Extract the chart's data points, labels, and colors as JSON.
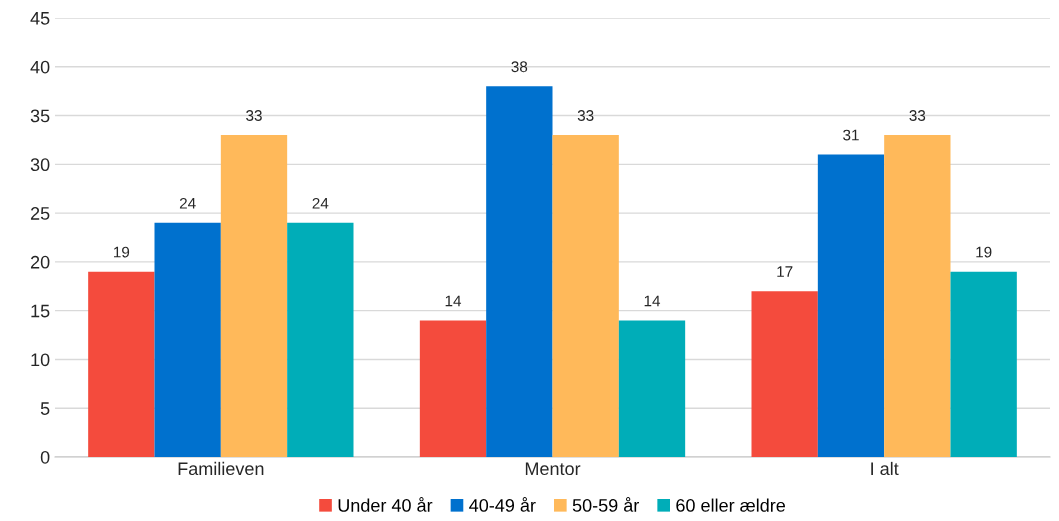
{
  "chart_data": {
    "type": "bar",
    "categories": [
      "Familieven",
      "Mentor",
      "I alt"
    ],
    "series": [
      {
        "name": "Under 40 år",
        "color": "#f44b3d",
        "values": [
          19,
          14,
          17
        ]
      },
      {
        "name": "40-49 år",
        "color": "#0071ce",
        "values": [
          24,
          38,
          31
        ]
      },
      {
        "name": "50-59 år",
        "color": "#ffb95a",
        "values": [
          33,
          33,
          33
        ]
      },
      {
        "name": "60 eller ældre",
        "color": "#00adb8",
        "values": [
          24,
          14,
          19
        ]
      }
    ],
    "ylim": [
      0,
      45
    ],
    "yticks": [
      0,
      5,
      10,
      15,
      20,
      25,
      30,
      35,
      40,
      45
    ],
    "grid": "y",
    "legend": "bottom",
    "data_labels": true
  }
}
